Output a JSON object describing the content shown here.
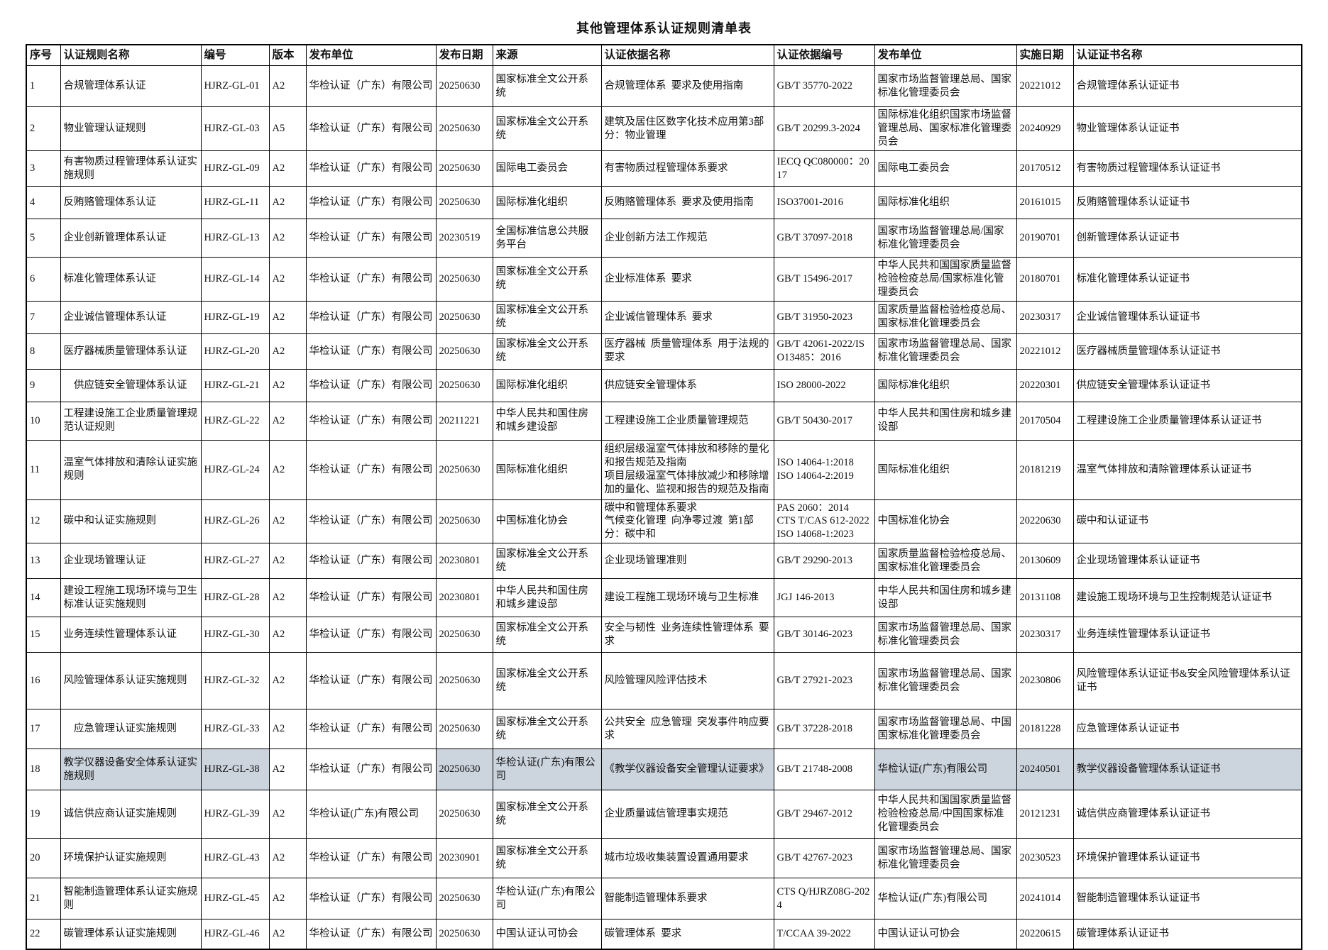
{
  "title": "其他管理体系认证规则清单表",
  "table": {
    "columns": [
      "序号",
      "认证规则名称",
      "编号",
      "版本",
      "发布单位",
      "发布日期",
      "来源",
      "认证依据名称",
      "认证依据编号",
      "发布单位",
      "实施日期",
      "认证证书名称"
    ],
    "highlight": {
      "row_index": 17,
      "cells": [
        1,
        2,
        5,
        6,
        7,
        9,
        10,
        11
      ],
      "color": "#ccd4de"
    },
    "rows": [
      [
        "1",
        "合规管理体系认证",
        "HJRZ-GL-01",
        "A2",
        "华检认证（广东）有限公司",
        "20250630",
        "国家标准全文公开系统",
        "合规管理体系  要求及使用指南",
        "GB/T 35770-2022",
        "国家市场监督管理总局、国家标准化管理委员会",
        "20221012",
        "合规管理体系认证证书"
      ],
      [
        "2",
        "物业管理认证规则",
        "HJRZ-GL-03",
        "A5",
        "华检认证（广东）有限公司",
        "20250630",
        "国家标准全文公开系统",
        "建筑及居住区数字化技术应用第3部分：物业管理",
        "GB/T 20299.3-2024",
        "国际标准化组织国家市场监督管理总局、国家标准化管理委员会",
        "20240929",
        "物业管理体系认证证书"
      ],
      [
        "3",
        "有害物质过程管理体系认证实施规则",
        "HJRZ-GL-09",
        "A2",
        "华检认证（广东）有限公司",
        "20250630",
        "国际电工委员会",
        "有害物质过程管理体系要求",
        "IECQ QC080000：2017",
        "国际电工委员会",
        "20170512",
        "有害物质过程管理体系认证证书"
      ],
      [
        "4",
        "反贿赂管理体系认证",
        "HJRZ-GL-11",
        "A2",
        "华检认证（广东）有限公司",
        "20250630",
        "国际标准化组织",
        "反贿赂管理体系  要求及使用指南",
        "ISO37001-2016",
        "国际标准化组织",
        "20161015",
        "反贿赂管理体系认证证书"
      ],
      [
        "5",
        "企业创新管理体系认证",
        "HJRZ-GL-13",
        "A2",
        "华检认证（广东）有限公司",
        "20230519",
        "全国标准信息公共服务平台",
        "企业创新方法工作规范",
        "GB/T 37097-2018",
        "国家市场监督管理总局/国家标准化管理委员会",
        "20190701",
        "创新管理体系认证证书"
      ],
      [
        "6",
        "标准化管理体系认证",
        "HJRZ-GL-14",
        "A2",
        "华检认证（广东）有限公司",
        "20250630",
        "国家标准全文公开系统",
        "企业标准体系  要求",
        "GB/T 15496-2017",
        "中华人民共和国国家质量监督检验检疫总局/国家标准化管理委员会",
        "20180701",
        "标准化管理体系认证证书"
      ],
      [
        "7",
        "企业诚信管理体系认证",
        "HJRZ-GL-19",
        "A2",
        "华检认证（广东）有限公司",
        "20250630",
        "国家标准全文公开系统",
        "企业诚信管理体系  要求",
        "GB/T 31950-2023",
        "国家质量监督检验检疫总局、国家标准化管理委员会",
        "20230317",
        "企业诚信管理体系认证证书"
      ],
      [
        "8",
        "医疗器械质量管理体系认证",
        "HJRZ-GL-20",
        "A2",
        "华检认证（广东）有限公司",
        "20250630",
        "国家标准全文公开系统",
        "医疗器械  质量管理体系  用于法规的要求",
        "GB/T 42061-2022/ISO13485：2016",
        "国家市场监督管理总局、国家标准化管理委员会",
        "20221012",
        "医疗器械质量管理体系认证证书"
      ],
      [
        "9",
        "　供应链安全管理体系认证",
        "HJRZ-GL-21",
        "A2",
        "华检认证（广东）有限公司",
        "20250630",
        "国际标准化组织",
        "供应链安全管理体系",
        "ISO 28000-2022",
        "国际标准化组织",
        "20220301",
        "供应链安全管理体系认证证书"
      ],
      [
        "10",
        "工程建设施工企业质量管理规范认证规则",
        "HJRZ-GL-22",
        "A2",
        "华检认证（广东）有限公司",
        "20211221",
        "中华人民共和国住房和城乡建设部",
        "工程建设施工企业质量管理规范",
        "GB/T 50430-2017",
        "中华人民共和国住房和城乡建设部",
        "20170504",
        "工程建设施工企业质量管理体系认证证书"
      ],
      [
        "11",
        "温室气体排放和清除认证实施规则",
        "HJRZ-GL-24",
        "A2",
        "华检认证（广东）有限公司",
        "20250630",
        "国际标准化组织",
        "组织层级温室气体排放和移除的量化和报告规范及指南\n项目层级温室气体排放减少和移除增加的量化、监视和报告的规范及指南",
        "ISO 14064-1:2018\nISO 14064-2:2019",
        "国际标准化组织",
        "20181219",
        "温室气体排放和清除管理体系认证证书"
      ],
      [
        "12",
        "碳中和认证实施规则",
        "HJRZ-GL-26",
        "A2",
        "华检认证（广东）有限公司",
        "20250630",
        "中国标准化协会",
        "碳中和管理体系要求\n气候变化管理  向净零过渡  第1部分：碳中和",
        "PAS 2060：2014\nCTS T/CAS 612-2022\nISO 14068-1:2023",
        "中国标准化协会",
        "20220630",
        "碳中和认证证书"
      ],
      [
        "13",
        "企业现场管理认证",
        "HJRZ-GL-27",
        "A2",
        "华检认证（广东）有限公司",
        "20230801",
        "国家标准全文公开系统",
        "企业现场管理准则",
        "GB/T 29290-2013",
        "国家质量监督检验检疫总局、国家标准化管理委员会",
        "20130609",
        "企业现场管理体系认证证书"
      ],
      [
        "14",
        "建设工程施工现场环境与卫生标准认证实施规则",
        "HJRZ-GL-28",
        "A2",
        "华检认证（广东）有限公司",
        "20230801",
        "中华人民共和国住房和城乡建设部",
        "建设工程施工现场环境与卫生标准",
        "JGJ 146-2013",
        "中华人民共和国住房和城乡建设部",
        "20131108",
        "建设施工现场环境与卫生控制规范认证证书"
      ],
      [
        "15",
        "业务连续性管理体系认证",
        "HJRZ-GL-30",
        "A2",
        "华检认证（广东）有限公司",
        "20250630",
        "国家标准全文公开系统",
        "安全与韧性  业务连续性管理体系  要求",
        "GB/T 30146-2023",
        "国家市场监督管理总局、国家标准化管理委员会",
        "20230317",
        "业务连续性管理体系认证证书"
      ],
      [
        "16",
        "风险管理体系认证实施规则",
        "HJRZ-GL-32",
        "A2",
        "华检认证（广东）有限公司",
        "20250630",
        "国家标准全文公开系统",
        "风险管理风险评估技术",
        "GB/T 27921-2023",
        "国家市场监督管理总局、国家标准化管理委员会",
        "20230806",
        "风险管理体系认证证书&安全风险管理体系认证证书"
      ],
      [
        "17",
        "　应急管理认证实施规则",
        "HJRZ-GL-33",
        "A2",
        "华检认证（广东）有限公司",
        "20250630",
        "国家标准全文公开系统",
        "公共安全  应急管理  突发事件响应要求",
        "GB/T 37228-2018",
        "国家市场监督管理总局、中国国家标准化管理委员会",
        "20181228",
        "应急管理体系认证证书"
      ],
      [
        "18",
        "教学仪器设备安全体系认证实施规则",
        "HJRZ-GL-38",
        "A2",
        "华检认证（广东）有限公司",
        "20250630",
        "华检认证(广东)有限公司",
        "《教学仪器设备安全管理认证要求》",
        "GB/T 21748-2008",
        "华检认证(广东)有限公司",
        "20240501",
        "教学仪器设备管理体系认证证书"
      ],
      [
        "19",
        "诚信供应商认证实施规则",
        "HJRZ-GL-39",
        "A2",
        "华检认证(广东)有限公司",
        "20250630",
        "国家标准全文公开系统",
        "企业质量诚信管理事实规范",
        "GB/T 29467-2012",
        "中华人民共和国国家质量监督检验检疫总局/中国国家标准化管理委员会",
        "20121231",
        "诚信供应商管理体系认证证书"
      ],
      [
        "20",
        "环境保护认证实施规则",
        "HJRZ-GL-43",
        "A2",
        "华检认证（广东）有限公司",
        "20230901",
        "国家标准全文公开系统",
        "城市垃圾收集装置设置通用要求",
        "GB/T 42767-2023",
        "国家市场监督管理总局、国家标准化管理委员会",
        "20230523",
        "环境保护管理体系认证证书"
      ],
      [
        "21",
        "智能制造管理体系认证实施规则",
        "HJRZ-GL-45",
        "A2",
        "华检认证（广东）有限公司",
        "20250630",
        "华检认证(广东)有限公司",
        "智能制造管理体系要求",
        "CTS Q/HJRZ08G-2024",
        "华检认证(广东)有限公司",
        "20241014",
        "智能制造管理体系认证证书"
      ],
      [
        "22",
        "碳管理体系认证实施规则",
        "HJRZ-GL-46",
        "A2",
        "华检认证（广东）有限公司",
        "20250630",
        "中国认证认可协会",
        "碳管理体系  要求",
        "T/CCAA 39-2022",
        "中国认证认可协会",
        "20220615",
        "碳管理体系认证证书"
      ]
    ]
  }
}
